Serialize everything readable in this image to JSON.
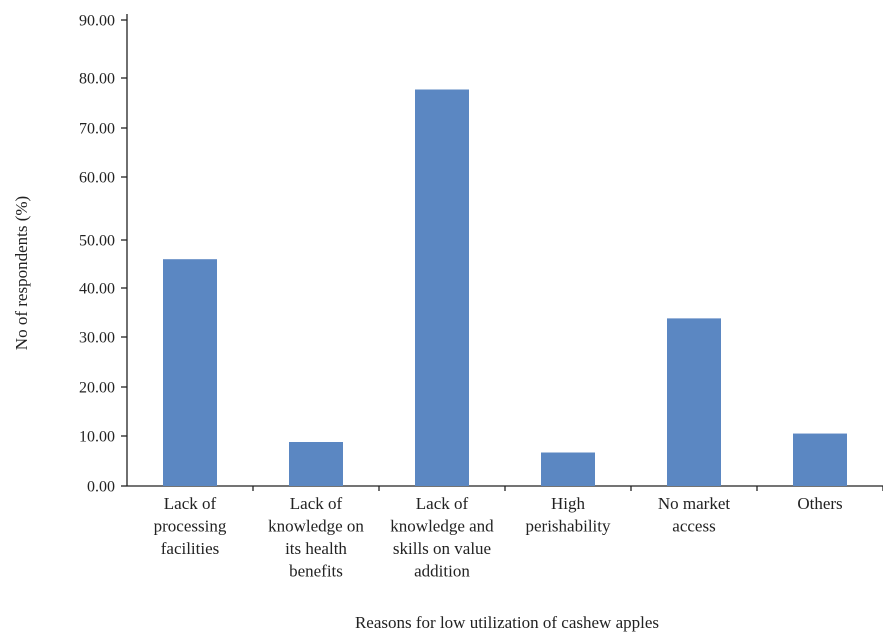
{
  "chart_data": {
    "type": "bar",
    "title": "",
    "xlabel": "Reasons for low utilization of cashew apples",
    "ylabel": "No of respondents (%)",
    "ylim": [
      0,
      90
    ],
    "yticks": [
      "0.00",
      "10.00",
      "20.00",
      "30.00",
      "40.00",
      "50.00",
      "60.00",
      "70.00",
      "80.00",
      "90.00"
    ],
    "grid": false,
    "legend": "none",
    "bar_color": "#5b87c2",
    "categories": [
      [
        "Lack of",
        "processing",
        "facilities"
      ],
      [
        "Lack of",
        "knowledge on",
        "its health",
        "benefits"
      ],
      [
        "Lack of",
        "knowledge and",
        "skills on value",
        "addition"
      ],
      [
        "High",
        "perishability"
      ],
      [
        "No market",
        "access"
      ],
      [
        "Others"
      ]
    ],
    "values": [
      46.0,
      8.8,
      77.7,
      6.7,
      33.8,
      10.5
    ]
  }
}
